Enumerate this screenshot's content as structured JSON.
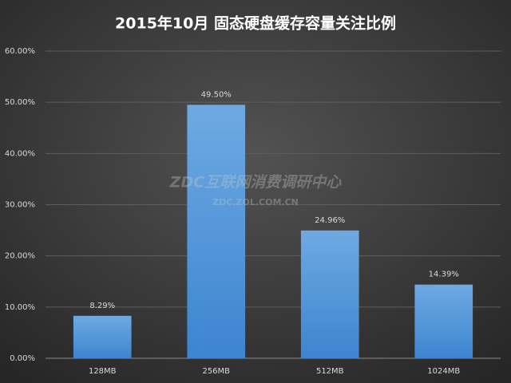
{
  "chart_data": {
    "type": "bar",
    "title": "2015年10月  固态硬盘缓存容量关注比例",
    "categories": [
      "128MB",
      "256MB",
      "512MB",
      "1024MB"
    ],
    "values": [
      8.29,
      49.5,
      24.96,
      14.39
    ],
    "value_labels": [
      "8.29%",
      "49.50%",
      "24.96%",
      "14.39%"
    ],
    "color": "#5b9bd5",
    "ylim": [
      0,
      60
    ],
    "yticks": [
      {
        "value": 0,
        "label": "0.00%"
      },
      {
        "value": 10,
        "label": "10.00%"
      },
      {
        "value": 20,
        "label": "20.00%"
      },
      {
        "value": 30,
        "label": "30.00%"
      },
      {
        "value": 40,
        "label": "40.00%"
      },
      {
        "value": 50,
        "label": "50.00%"
      },
      {
        "value": 60,
        "label": "60.00%"
      }
    ],
    "grid": true,
    "watermark": "ZDC互联网消费调研中心",
    "watermark_url": "ZDC.ZOL.COM.CN"
  }
}
